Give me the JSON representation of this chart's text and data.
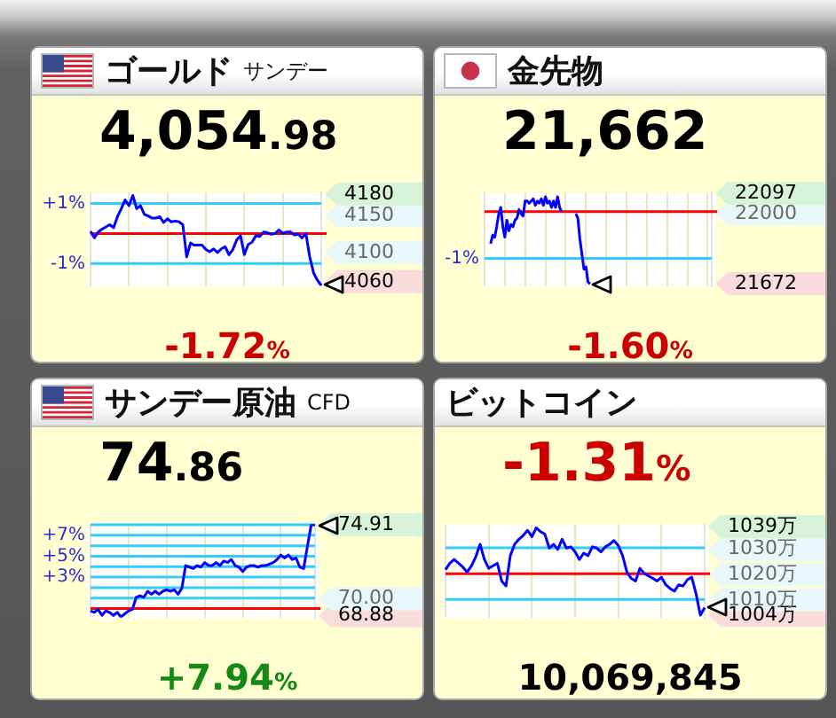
{
  "chart_data": [
    {
      "type": "line",
      "title": "ゴールド",
      "subtitle": "サンデー",
      "annotations": [
        "4,054.98",
        "-1.72%"
      ],
      "categories": [
        null,
        null,
        null,
        null,
        null,
        null,
        null,
        null,
        null,
        null,
        null,
        null,
        null,
        null,
        null,
        null,
        null,
        null,
        null,
        null,
        null,
        null,
        null,
        null,
        null,
        null,
        null,
        null,
        null,
        null,
        null,
        null,
        null,
        null,
        null,
        null,
        null,
        null,
        null,
        null,
        null,
        null,
        null,
        null,
        null,
        null,
        null,
        null,
        null,
        null,
        null,
        null,
        null,
        null,
        null,
        null,
        null,
        null,
        null,
        null,
        null
      ],
      "values": [
        4129,
        4120,
        4128,
        4132,
        4135,
        4138,
        4134,
        4149,
        4160,
        4172,
        4164,
        4178,
        4160,
        4164,
        4152,
        4150,
        4147,
        4147,
        4149,
        4141,
        4146,
        4142,
        4143,
        4142,
        4138,
        4094,
        4113,
        4110,
        4110,
        4110,
        4104,
        4101,
        4105,
        4100,
        4105,
        4108,
        4097,
        4104,
        4117,
        4123,
        4097,
        4111,
        4114,
        4123,
        4122,
        4128,
        4127,
        4125,
        4126,
        4131,
        4126,
        4128,
        4128,
        4124,
        4125,
        4120,
        4126,
        4094,
        4072,
        4062,
        4055
      ],
      "color": "#0000ff",
      "ylim": [
        4054,
        4182
      ],
      "yticks": [
        4060,
        4100,
        4150,
        4180
      ],
      "y2lim": [
        -1.75,
        1.36
      ],
      "ref_lines": [
        {
          "axis": "y",
          "value": 4126,
          "color": "#ff0000"
        },
        {
          "axis": "y2",
          "value": 1,
          "label": "+1%",
          "color": "#33ccff"
        },
        {
          "axis": "y2",
          "value": -1,
          "label": "-1%",
          "color": "#33ccff"
        }
      ],
      "grid": "x",
      "tick_labels": "y"
    },
    {
      "type": "line",
      "title": "金先物",
      "annotations": [
        "21,662",
        "-1.60%",
        "-1%"
      ],
      "categories": [
        null,
        null,
        null,
        null,
        null,
        null,
        null,
        null,
        null,
        null,
        null,
        null,
        null,
        null,
        null,
        null,
        null,
        null,
        null,
        null,
        null,
        null,
        null,
        null,
        null,
        null,
        null,
        null,
        null,
        null,
        null,
        null,
        null,
        null,
        null,
        null,
        null,
        null,
        null,
        null,
        null,
        null,
        null,
        null,
        null,
        null,
        null,
        null,
        null,
        null,
        null,
        null,
        null,
        null,
        null,
        null,
        null,
        null,
        null,
        null,
        null,
        null,
        null,
        null,
        null,
        null,
        null,
        null,
        null,
        null,
        null,
        null,
        null,
        null,
        null,
        null,
        null,
        null,
        null,
        null,
        null,
        null,
        null,
        null,
        null,
        null,
        null,
        null,
        null,
        null,
        null,
        null,
        null,
        null,
        null,
        null,
        null,
        null,
        null,
        null,
        null,
        null,
        null,
        null,
        null,
        null,
        null,
        null,
        null,
        null,
        null,
        null,
        null
      ],
      "values": [
        null,
        null,
        null,
        21860,
        21900,
        21890,
        21940,
        22000,
        22030,
        21940,
        21890,
        21970,
        21920,
        21950,
        21940,
        21970,
        21980,
        22020,
        22000,
        21990,
        22060,
        22060,
        22050,
        22060,
        22070,
        22040,
        22060,
        22050,
        22070,
        22040,
        22080,
        22050,
        22060,
        22030,
        22060,
        22030,
        22080,
        22030,
        22010,
        null,
        null,
        null,
        null,
        null,
        null,
        22000,
        21980,
        21880,
        21810,
        21740,
        21750,
        21680,
        21670,
        null,
        null,
        null,
        null,
        null,
        null,
        null,
        null,
        null,
        null,
        null,
        null,
        null,
        null,
        null,
        null,
        null,
        null,
        null,
        null,
        null,
        null,
        null,
        null,
        null,
        null,
        null,
        null,
        null,
        null,
        null,
        null,
        null,
        null,
        null,
        null,
        null,
        null,
        null,
        null,
        null,
        null,
        null,
        null,
        null,
        null,
        null,
        null,
        null,
        null,
        null,
        null,
        null,
        null,
        null,
        null,
        null,
        null,
        null,
        null
      ],
      "color": "#0000ff",
      "ylim": [
        21660,
        22100
      ],
      "yticks": [
        21672,
        22000,
        22097
      ],
      "ref_lines": [
        {
          "axis": "y",
          "value": 22010,
          "color": "#ff0000"
        },
        {
          "axis": "y",
          "value": 21790,
          "color": "#33ccff"
        }
      ],
      "grid": "x",
      "tick_labels": "y"
    },
    {
      "type": "line",
      "title": "サンデー原油",
      "subtitle": "CFD",
      "annotations": [
        "74.86",
        "+7.94%"
      ],
      "categories": [
        null,
        null,
        null,
        null,
        null,
        null,
        null,
        null,
        null,
        null,
        null,
        null,
        null,
        null,
        null,
        null,
        null,
        null,
        null,
        null,
        null,
        null,
        null,
        null,
        null,
        null,
        null,
        null,
        null,
        null,
        null,
        null,
        null,
        null,
        null,
        null,
        null,
        null,
        null,
        null,
        null,
        null,
        null,
        null,
        null,
        null,
        null,
        null,
        null,
        null,
        null,
        null,
        null,
        null,
        null,
        null,
        null,
        null,
        null,
        null
      ],
      "values": [
        69.2,
        69.1,
        69.3,
        68.9,
        69.2,
        69.1,
        68.9,
        69.1,
        68.8,
        69,
        69.2,
        69.3,
        70.1,
        70.2,
        70.1,
        70.5,
        70.3,
        70.5,
        70.3,
        70.5,
        70.6,
        70.5,
        70.6,
        70.3,
        70.7,
        72.2,
        72.1,
        72,
        72.2,
        72.1,
        72.4,
        72.2,
        72.2,
        72.4,
        72.2,
        72.5,
        72.4,
        72.6,
        72.2,
        72.1,
        71.8,
        72.1,
        72.2,
        72.2,
        72.1,
        72.2,
        72.2,
        72.3,
        72.4,
        72.6,
        72.9,
        72.7,
        72.9,
        72.6,
        72.7,
        72.1,
        72,
        73.5,
        74.9,
        74.9
      ],
      "color": "#0000ff",
      "ylim": [
        68.75,
        74.95
      ],
      "yticks": [
        68.88,
        {
          "value": 70,
          "label": "70.00"
        },
        74.91
      ],
      "y2lim": [
        -0.87,
        8.07
      ],
      "ref_lines": [
        {
          "axis": "y",
          "value": 69.35,
          "color": "#ff0000"
        },
        {
          "axis": "y2",
          "value": 1,
          "color": "#33ccff"
        },
        {
          "axis": "y2",
          "value": 2,
          "color": "#33ccff"
        },
        {
          "axis": "y2",
          "value": 3,
          "label": "+3%",
          "color": "#33ccff"
        },
        {
          "axis": "y2",
          "value": 4,
          "color": "#33ccff"
        },
        {
          "axis": "y2",
          "value": 5,
          "label": "+5%",
          "color": "#33ccff"
        },
        {
          "axis": "y2",
          "value": 6,
          "color": "#33ccff"
        },
        {
          "axis": "y2",
          "value": 7,
          "label": "+7%",
          "color": "#33ccff"
        },
        {
          "axis": "y2",
          "value": 8,
          "color": "#33ccff"
        }
      ],
      "grid": "x",
      "tick_labels": "y"
    },
    {
      "type": "line",
      "title": "ビットコイン",
      "annotations": [
        "-1.31%",
        "10,069,845"
      ],
      "categories": [
        null,
        null,
        null,
        null,
        null,
        null,
        null,
        null,
        null,
        null,
        null,
        null,
        null,
        null,
        null,
        null,
        null,
        null,
        null,
        null,
        null,
        null,
        null,
        null,
        null,
        null,
        null,
        null,
        null,
        null,
        null,
        null,
        null,
        null,
        null,
        null,
        null,
        null,
        null,
        null,
        null,
        null,
        null,
        null,
        null,
        null,
        null,
        null,
        null,
        null,
        null,
        null,
        null,
        null,
        null,
        null,
        null,
        null,
        null,
        null,
        null
      ],
      "values": [
        1022,
        1024.5,
        1026,
        1024.5,
        1023,
        1021,
        1023.5,
        1027,
        1032,
        1026,
        1022.5,
        1023.5,
        1024.5,
        1017.5,
        1015.5,
        1027.5,
        1032,
        1034,
        1035.5,
        1037.5,
        1035,
        1038.5,
        1037,
        1036,
        1030.5,
        1032,
        1030,
        1034,
        1030.5,
        1031,
        1029,
        1026,
        1028.5,
        1027.5,
        1031,
        1030.5,
        1029,
        1031,
        1032,
        1033.5,
        1031.5,
        1027.5,
        1021,
        1018.5,
        1017.5,
        1022.5,
        1020.5,
        1019.5,
        1018.5,
        1017.5,
        1019,
        1016,
        1014.5,
        1013.5,
        1016,
        1015.5,
        1018,
        1019,
        1012.5,
        1004,
        1007
      ],
      "color": "#0000ff",
      "ylim": [
        1003,
        1040
      ],
      "yticks": [
        {
          "value": 1004,
          "label": "1004万"
        },
        {
          "value": 1010,
          "label": "1010万"
        },
        {
          "value": 1020,
          "label": "1020万"
        },
        {
          "value": 1030,
          "label": "1030万"
        },
        {
          "value": 1039,
          "label": "1039万"
        }
      ],
      "ref_lines": [
        {
          "axis": "y",
          "value": 1020.4,
          "color": "#ff0000"
        },
        {
          "axis": "y",
          "value": 1030.6,
          "color": "#33ccff"
        },
        {
          "axis": "y",
          "value": 1010.2,
          "color": "#33ccff"
        }
      ],
      "grid": "x",
      "tick_labels": "y"
    }
  ]
}
